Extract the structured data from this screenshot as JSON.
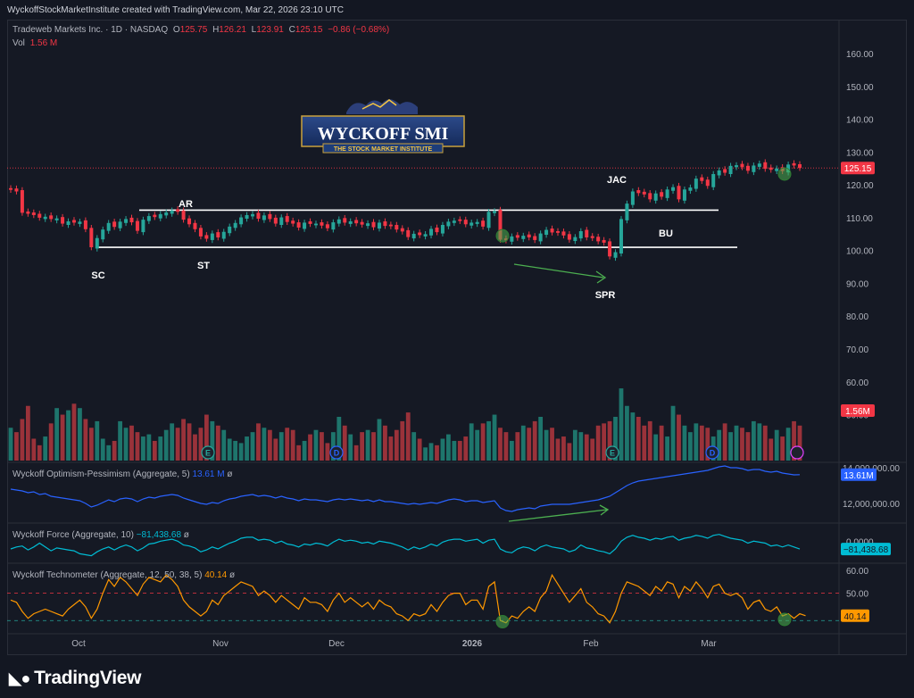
{
  "credit": "WyckoffStockMarketInstitute created with TradingView.com, Mar 22, 2026 23:10 UTC",
  "symbol": {
    "name": "Tradeweb Markets Inc. · 1D · NASDAQ",
    "o_label": "O",
    "o": "125.75",
    "h_label": "H",
    "h": "126.21",
    "l_label": "L",
    "l": "123.91",
    "c_label": "C",
    "c": "125.15",
    "change": "−0.86 (−0.68%)",
    "vol_label": "Vol",
    "vol": "1.56 M"
  },
  "logo": {
    "title": "WYCKOFF SMI",
    "subtitle": "THE STOCK MARKET INSTITUTE"
  },
  "price_axis": {
    "ticks": [
      "160.00",
      "150.00",
      "140.00",
      "130.00",
      "120.00",
      "110.00",
      "100.00",
      "90.00",
      "80.00",
      "70.00",
      "60.00",
      "50.00"
    ],
    "last_price_badge": "125.15",
    "volume_badge": "1.56M"
  },
  "annotations": {
    "sc": "SC",
    "ar": "AR",
    "st": "ST",
    "spr": "SPR",
    "jac": "JAC",
    "bu": "BU"
  },
  "indicators": {
    "op": {
      "label": "Wyckoff Optimism-Pessimism (Aggregate, 5)",
      "value": "13.61 M",
      "badge": "13.61M",
      "ticks": [
        "14,000,000.00",
        "12,000,000.00"
      ]
    },
    "force": {
      "label": "Wyckoff Force (Aggregate, 10)",
      "value": "−81,438.68",
      "badge": "−81,438.68",
      "ticks": [
        "0.0000"
      ]
    },
    "techno": {
      "label": "Wyckoff Technometer (Aggregate, 12, 50, 38, 5)",
      "value": "40.14",
      "badge": "40.14",
      "ticks": [
        "60.00",
        "50.00"
      ]
    }
  },
  "time_axis": [
    "Oct",
    "Nov",
    "Dec",
    "2026",
    "Feb",
    "Mar"
  ],
  "event_markers": {
    "earnings": "E",
    "dividend": "D"
  },
  "footer_brand": "TradingView",
  "colors": {
    "up": "#26a69a",
    "down": "#f23645",
    "bg": "#131722",
    "op_line": "#2962ff",
    "force_line": "#00bcd4",
    "techno_line": "#ff9800",
    "annotation_arrow": "#4caf50"
  },
  "chart_data": [
    {
      "type": "candlestick",
      "title": "Tradeweb Markets Inc. · 1D · NASDAQ",
      "ylim": [
        42,
        163
      ],
      "support": 101,
      "resistance": 112.3,
      "x_range": [
        "Sep",
        "Mar"
      ],
      "closes": [
        118.5,
        118.0,
        111.5,
        111.2,
        110.8,
        110.0,
        110.3,
        109.6,
        109.8,
        108.2,
        108.9,
        108.5,
        108.8,
        106.5,
        101.0,
        103.8,
        106.4,
        108.4,
        107.2,
        108.8,
        109.6,
        108.6,
        106.0,
        109.4,
        110.5,
        110.2,
        111.1,
        111.6,
        112.2,
        111.8,
        109.4,
        108.0,
        106.5,
        104.3,
        103.6,
        105.2,
        104.0,
        105.7,
        107.3,
        108.4,
        110.1,
        110.8,
        111.1,
        109.7,
        110.7,
        109.6,
        108.2,
        110.1,
        108.7,
        108.2,
        107.0,
        108.5,
        108.1,
        108.2,
        107.6,
        106.8,
        108.6,
        109.5,
        108.5,
        108.9,
        108.3,
        107.9,
        108.3,
        107.1,
        108.5,
        107.5,
        107.4,
        106.4,
        105.8,
        104.1,
        105.1,
        104.7,
        105.0,
        106.6,
        105.6,
        107.8,
        108.8,
        109.1,
        109.0,
        108.0,
        108.5,
        108.7,
        107.3,
        111.8,
        112.0,
        103.3,
        103.1,
        104.3,
        103.9,
        104.5,
        104.0,
        103.2,
        105.2,
        106.3,
        105.5,
        105.4,
        104.6,
        103.3,
        104.1,
        105.9,
        104.0,
        103.8,
        102.8,
        102.4,
        98.2,
        99.5,
        109.6,
        114.3,
        118.0,
        117.5,
        117.1,
        115.6,
        117.4,
        116.4,
        118.6,
        119.3,
        115.6,
        118.6,
        119.2,
        121.9,
        121.2,
        119.7,
        123.3,
        124.4,
        123.7,
        125.8,
        126.0,
        125.4,
        124.3,
        125.9,
        126.5,
        124.9,
        124.6,
        125.0,
        124.2,
        126.2,
        125.9,
        125.15
      ],
      "volume": [
        57,
        55,
        61,
        67,
        52,
        49,
        53,
        59,
        66,
        63,
        65,
        68,
        66,
        61,
        57,
        60,
        52,
        49,
        51,
        60,
        57,
        58,
        55,
        53,
        54,
        51,
        53,
        56,
        59,
        57,
        61,
        59,
        54,
        57,
        63,
        60,
        58,
        56,
        52,
        51,
        50,
        53,
        55,
        59,
        57,
        56,
        52,
        55,
        57,
        56,
        49,
        51,
        54,
        56,
        55,
        50,
        55,
        62,
        58,
        54,
        49,
        55,
        56,
        55,
        61,
        58,
        53,
        56,
        60,
        64,
        55,
        52,
        48,
        50,
        49,
        52,
        54,
        51,
        51,
        53,
        59,
        56,
        59,
        60,
        63,
        57,
        55,
        51,
        55,
        58,
        57,
        60,
        62,
        56,
        57,
        52,
        53,
        50,
        56,
        55,
        54,
        52,
        58,
        59,
        60,
        62,
        75,
        67,
        64,
        62,
        58,
        60,
        54,
        58,
        53,
        67,
        63,
        58,
        55,
        59,
        58,
        57,
        53,
        56,
        59,
        55,
        58,
        57,
        55,
        60,
        59,
        58,
        52,
        56,
        53,
        57,
        60,
        58
      ]
    },
    {
      "type": "line",
      "name": "Wyckoff Optimism-Pessimism (Aggregate, 5)",
      "ylim": [
        11000000,
        14200000
      ],
      "y": [
        12800000,
        12750000,
        12700000,
        12600000,
        12650000,
        12500000,
        12550000,
        12400000,
        12350000,
        12300000,
        12250000,
        12200000,
        12150000,
        12000000,
        11800000,
        11900000,
        12050000,
        12200000,
        12100000,
        12250000,
        12300000,
        12250000,
        12100000,
        12250000,
        12350000,
        12300000,
        12400000,
        12450000,
        12500000,
        12450000,
        12300000,
        12200000,
        12100000,
        12000000,
        11950000,
        12050000,
        12000000,
        12150000,
        12250000,
        12300000,
        12400000,
        12450000,
        12500000,
        12400000,
        12450000,
        12400000,
        12300000,
        12400000,
        12300000,
        12250000,
        12150000,
        12250000,
        12200000,
        12200000,
        12150000,
        12100000,
        12200000,
        12250000,
        12200000,
        12250000,
        12200000,
        12150000,
        12200000,
        12100000,
        12200000,
        12100000,
        12100000,
        12050000,
        12000000,
        11950000,
        12000000,
        11950000,
        12000000,
        12050000,
        12000000,
        12100000,
        12200000,
        12250000,
        12200000,
        12100000,
        12150000,
        12150000,
        12050000,
        12100000,
        12150000,
        11750000,
        11600000,
        11550000,
        11650000,
        11700000,
        11750000,
        11700000,
        11850000,
        11900000,
        11950000,
        11950000,
        11950000,
        11950000,
        12000000,
        12050000,
        12100000,
        12150000,
        12200000,
        12300000,
        12400000,
        12600000,
        12800000,
        13000000,
        13150000,
        13250000,
        13300000,
        13350000,
        13400000,
        13450000,
        13500000,
        13550000,
        13600000,
        13650000,
        13700000,
        13750000,
        13800000,
        13850000,
        13950000,
        14050000,
        14100000,
        14000000,
        14000000,
        13950000,
        13850000,
        13900000,
        13900000,
        13800000,
        13750000,
        13800000,
        13700000,
        13650000,
        13600000,
        13610000
      ]
    },
    {
      "type": "line",
      "name": "Wyckoff Force (Aggregate, 10)",
      "ylim": [
        -200000,
        150000
      ],
      "y": [
        -80000,
        -60000,
        -50000,
        -90000,
        -60000,
        -20000,
        -60000,
        -100000,
        -70000,
        -80000,
        -90000,
        -100000,
        -130000,
        -140000,
        -150000,
        -110000,
        -80000,
        -60000,
        -90000,
        -60000,
        -40000,
        -60000,
        -100000,
        -70000,
        -30000,
        -20000,
        0,
        10000,
        20000,
        0,
        -40000,
        -50000,
        -70000,
        -110000,
        -90000,
        -60000,
        -80000,
        -50000,
        -20000,
        0,
        30000,
        40000,
        40000,
        10000,
        20000,
        10000,
        -20000,
        0,
        -30000,
        -40000,
        -60000,
        -30000,
        -40000,
        -20000,
        -30000,
        -50000,
        -10000,
        20000,
        0,
        10000,
        0,
        -20000,
        -10000,
        -30000,
        0,
        -10000,
        -20000,
        -40000,
        -60000,
        -90000,
        -60000,
        -80000,
        -60000,
        -30000,
        -50000,
        -10000,
        10000,
        20000,
        20000,
        0,
        10000,
        20000,
        -20000,
        10000,
        20000,
        -80000,
        -110000,
        -120000,
        -80000,
        -60000,
        -70000,
        -100000,
        -60000,
        -40000,
        -60000,
        -70000,
        -80000,
        -110000,
        -90000,
        -40000,
        -70000,
        -80000,
        -100000,
        -110000,
        -130000,
        -80000,
        0,
        40000,
        60000,
        40000,
        30000,
        10000,
        30000,
        20000,
        40000,
        50000,
        10000,
        30000,
        40000,
        60000,
        50000,
        30000,
        60000,
        70000,
        50000,
        30000,
        20000,
        10000,
        -20000,
        0,
        -10000,
        -20000,
        -50000,
        -40000,
        -60000,
        -40000,
        -60000,
        -81438.68
      ]
    },
    {
      "type": "line",
      "name": "Wyckoff Technometer (Aggregate, 12, 50, 38, 5)",
      "ylim": [
        33,
        62
      ],
      "reference_lines": [
        50,
        38
      ],
      "y": [
        47,
        46,
        42,
        39,
        41,
        42,
        43,
        42,
        41,
        40,
        43,
        45,
        47,
        44,
        39,
        43,
        50,
        56,
        53,
        57,
        55,
        52,
        49,
        54,
        57,
        56,
        55,
        58,
        56,
        53,
        47,
        44,
        42,
        40,
        42,
        47,
        45,
        49,
        51,
        53,
        55,
        54,
        53,
        49,
        51,
        49,
        46,
        49,
        47,
        45,
        43,
        48,
        46,
        46,
        45,
        42,
        47,
        50,
        46,
        48,
        46,
        44,
        46,
        43,
        47,
        45,
        44,
        41,
        40,
        38,
        41,
        40,
        41,
        45,
        42,
        46,
        49,
        50,
        50,
        45,
        47,
        47,
        43,
        53,
        55,
        38,
        37,
        40,
        39,
        42,
        44,
        42,
        48,
        51,
        58,
        54,
        50,
        46,
        49,
        52,
        46,
        44,
        41,
        40,
        37,
        42,
        50,
        55,
        54,
        53,
        51,
        49,
        53,
        51,
        55,
        54,
        48,
        53,
        51,
        55,
        52,
        48,
        53,
        54,
        50,
        49,
        50,
        48,
        43,
        46,
        47,
        43,
        42,
        44,
        40,
        41,
        39,
        41,
        40.14
      ]
    }
  ]
}
